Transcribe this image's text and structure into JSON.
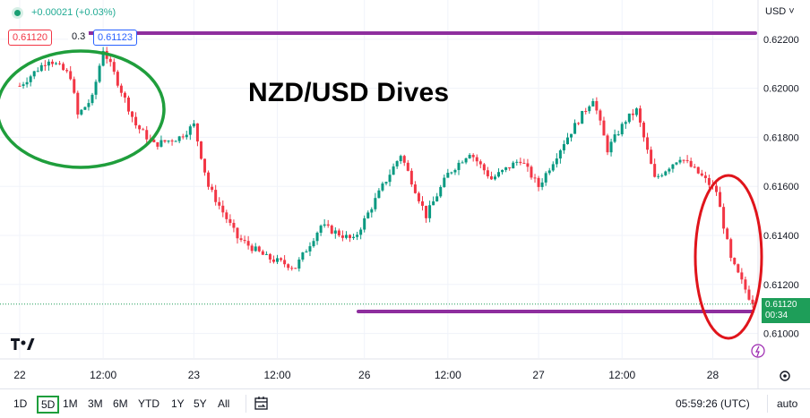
{
  "header": {
    "change": "+0.00021 (+0.03%)",
    "bid": "0.61120",
    "spread": "0.3",
    "ask": "0.61123",
    "currency": "USD"
  },
  "annotation_title": "NZD/USD Dives",
  "current_price": {
    "value": "0.61120",
    "countdown": "00:34"
  },
  "bottom_bar": {
    "timeframes": [
      "1D",
      "5D",
      "1M",
      "3M",
      "6M",
      "YTD",
      "1Y",
      "5Y",
      "All"
    ],
    "selected": "5D",
    "clock": "05:59:26 (UTC)",
    "scale_mode": "auto"
  },
  "colors": {
    "up": "#089981",
    "down": "#f23645",
    "line": "#8e2e9e",
    "circle_green": "#1f9e3c",
    "circle_red": "#e0141b",
    "current": "#1e9e59"
  },
  "chart_data": {
    "type": "candlestick",
    "title": "NZD/USD Dives",
    "ylim": [
      0.609,
      0.6236
    ],
    "yticks": [
      0.61,
      0.612,
      0.614,
      0.616,
      0.618,
      0.62,
      0.622
    ],
    "xticks": [
      "22",
      "12:00",
      "23",
      "12:00",
      "26",
      "12:00",
      "27",
      "12:00",
      "28"
    ],
    "xtick_index": [
      0,
      23,
      48,
      71,
      95,
      118,
      143,
      166,
      191
    ],
    "n_bars": 203,
    "keypoints": [
      [
        0,
        0.6201
      ],
      [
        8,
        0.6212
      ],
      [
        14,
        0.6205
      ],
      [
        16,
        0.6189
      ],
      [
        20,
        0.6196
      ],
      [
        23,
        0.6216
      ],
      [
        26,
        0.6206
      ],
      [
        32,
        0.6185
      ],
      [
        37,
        0.6177
      ],
      [
        44,
        0.618
      ],
      [
        48,
        0.6185
      ],
      [
        52,
        0.616
      ],
      [
        60,
        0.6139
      ],
      [
        68,
        0.6131
      ],
      [
        76,
        0.6127
      ],
      [
        83,
        0.6144
      ],
      [
        92,
        0.6138
      ],
      [
        100,
        0.616
      ],
      [
        105,
        0.6173
      ],
      [
        112,
        0.6148
      ],
      [
        118,
        0.6165
      ],
      [
        124,
        0.6174
      ],
      [
        130,
        0.6163
      ],
      [
        138,
        0.6171
      ],
      [
        143,
        0.616
      ],
      [
        150,
        0.6178
      ],
      [
        158,
        0.6196
      ],
      [
        162,
        0.6175
      ],
      [
        167,
        0.6187
      ],
      [
        170,
        0.6191
      ],
      [
        175,
        0.6163
      ],
      [
        182,
        0.6172
      ],
      [
        188,
        0.6164
      ],
      [
        192,
        0.6158
      ],
      [
        196,
        0.613
      ],
      [
        202,
        0.6112
      ]
    ],
    "current": 0.6112,
    "resistance": 0.62225,
    "support": 0.6109
  }
}
